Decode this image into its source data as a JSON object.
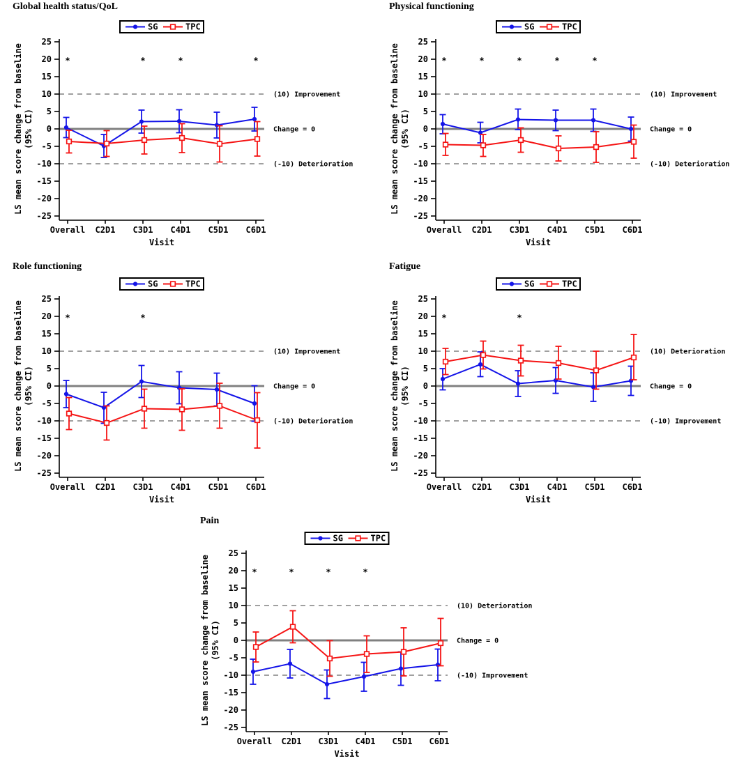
{
  "figure": {
    "background": "#ffffff",
    "axis_color": "#000000",
    "reference_color": "#808080",
    "significance_symbol": "*",
    "xlabel": "Visit",
    "ylabel_line1": "LS mean score change from baseline",
    "ylabel_line2": "(95% CI)",
    "categories": [
      "Overall",
      "C2D1",
      "C3D1",
      "C4D1",
      "C5D1",
      "C6D1"
    ],
    "yticks": [
      25,
      20,
      15,
      10,
      5,
      0,
      -5,
      -10,
      -15,
      -20,
      -25
    ],
    "series_colors": {
      "SG": "#1414e8",
      "TPC": "#f51414"
    }
  },
  "chart_data": [
    {
      "type": "line",
      "title": "Global health status/QoL",
      "xlabel": "Visit",
      "ylabel_line1": "LS mean score change from baseline",
      "ylabel_line2": "(95% CI)",
      "ylim": [
        -25,
        25
      ],
      "yticks": [
        25,
        20,
        15,
        10,
        5,
        0,
        -5,
        -10,
        -15,
        -20,
        -25
      ],
      "categories": [
        "Overall",
        "C2D1",
        "C3D1",
        "C4D1",
        "C5D1",
        "C6D1"
      ],
      "legend_position": "top-center",
      "ref_lines": [
        {
          "y": 10,
          "style": "dashed",
          "label": "(10) Improvement"
        },
        {
          "y": 0,
          "style": "solid",
          "label": "Change = 0"
        },
        {
          "y": -10,
          "style": "dashed",
          "label": "(-10) Deterioration"
        }
      ],
      "significance_marks": {
        "y": 20,
        "at": [
          "Overall",
          "C3D1",
          "C4D1",
          "C6D1"
        ]
      },
      "series": [
        {
          "name": "SG",
          "color": "#1414e8",
          "marker": "filled-circle",
          "values": [
            0.4,
            -4.9,
            2.1,
            2.2,
            1.1,
            2.8
          ],
          "ci_low": [
            -2.5,
            -8.2,
            -1.2,
            -1.1,
            -2.6,
            -0.6
          ],
          "ci_high": [
            3.3,
            -1.6,
            5.4,
            5.5,
            4.8,
            6.2
          ]
        },
        {
          "name": "TPC",
          "color": "#f51414",
          "marker": "open-square",
          "values": [
            -3.6,
            -4.2,
            -3.2,
            -2.6,
            -4.3,
            -2.9
          ],
          "ci_low": [
            -6.9,
            -7.9,
            -7.2,
            -6.8,
            -9.5,
            -7.8
          ],
          "ci_high": [
            -0.4,
            -0.5,
            0.8,
            1.5,
            0.9,
            2.1
          ]
        }
      ]
    },
    {
      "type": "line",
      "title": "Physical functioning",
      "xlabel": "Visit",
      "ylabel_line1": "LS mean score change from baseline",
      "ylabel_line2": "(95% CI)",
      "ylim": [
        -25,
        25
      ],
      "yticks": [
        25,
        20,
        15,
        10,
        5,
        0,
        -5,
        -10,
        -15,
        -20,
        -25
      ],
      "categories": [
        "Overall",
        "C2D1",
        "C3D1",
        "C4D1",
        "C5D1",
        "C6D1"
      ],
      "legend_position": "top-center",
      "ref_lines": [
        {
          "y": 10,
          "style": "dashed",
          "label": "(10) Improvement"
        },
        {
          "y": 0,
          "style": "solid",
          "label": "Change = 0"
        },
        {
          "y": -10,
          "style": "dashed",
          "label": "(-10) Deterioration"
        }
      ],
      "significance_marks": {
        "y": 20,
        "at": [
          "Overall",
          "C2D1",
          "C3D1",
          "C4D1",
          "C5D1"
        ]
      },
      "series": [
        {
          "name": "SG",
          "color": "#1414e8",
          "marker": "filled-circle",
          "values": [
            1.4,
            -1.1,
            2.7,
            2.5,
            2.5,
            0.0
          ],
          "ci_low": [
            -1.4,
            -4.0,
            -0.2,
            -0.5,
            -0.7,
            -3.5
          ],
          "ci_high": [
            4.1,
            1.9,
            5.7,
            5.4,
            5.7,
            3.4
          ]
        },
        {
          "name": "TPC",
          "color": "#f51414",
          "marker": "open-square",
          "values": [
            -4.5,
            -4.7,
            -3.2,
            -5.6,
            -5.2,
            -3.7
          ],
          "ci_low": [
            -7.6,
            -7.9,
            -6.7,
            -9.2,
            -9.6,
            -8.4
          ],
          "ci_high": [
            -1.3,
            -1.6,
            0.3,
            -2.0,
            -0.8,
            1.1
          ]
        }
      ]
    },
    {
      "type": "line",
      "title": "Role functioning",
      "xlabel": "Visit",
      "ylabel_line1": "LS mean score change from baseline",
      "ylabel_line2": "(95% CI)",
      "ylim": [
        -25,
        25
      ],
      "yticks": [
        25,
        20,
        15,
        10,
        5,
        0,
        -5,
        -10,
        -15,
        -20,
        -25
      ],
      "categories": [
        "Overall",
        "C2D1",
        "C3D1",
        "C4D1",
        "C5D1",
        "C6D1"
      ],
      "legend_position": "top-center",
      "ref_lines": [
        {
          "y": 10,
          "style": "dashed",
          "label": "(10) Improvement"
        },
        {
          "y": 0,
          "style": "solid",
          "label": "Change = 0"
        },
        {
          "y": -10,
          "style": "dashed",
          "label": "(-10) Deterioration"
        }
      ],
      "significance_marks": {
        "y": 20,
        "at": [
          "Overall",
          "C3D1"
        ]
      },
      "series": [
        {
          "name": "SG",
          "color": "#1414e8",
          "marker": "filled-circle",
          "values": [
            -2.3,
            -6.2,
            1.3,
            -0.5,
            -1.0,
            -5.0
          ],
          "ci_low": [
            -6.2,
            -10.7,
            -3.3,
            -5.1,
            -5.7,
            -10.1
          ],
          "ci_high": [
            1.6,
            -1.8,
            5.9,
            4.1,
            3.7,
            0.1
          ]
        },
        {
          "name": "TPC",
          "color": "#f51414",
          "marker": "open-square",
          "values": [
            -7.9,
            -10.6,
            -6.5,
            -6.7,
            -5.7,
            -9.8
          ],
          "ci_low": [
            -12.5,
            -15.5,
            -12.1,
            -12.7,
            -12.1,
            -17.8
          ],
          "ci_high": [
            -3.3,
            -5.7,
            -0.9,
            -0.8,
            0.8,
            -1.9
          ]
        }
      ]
    },
    {
      "type": "line",
      "title": "Fatigue",
      "xlabel": "Visit",
      "ylabel_line1": "LS mean score change from baseline",
      "ylabel_line2": "(95% CI)",
      "ylim": [
        -25,
        25
      ],
      "yticks": [
        25,
        20,
        15,
        10,
        5,
        0,
        -5,
        -10,
        -15,
        -20,
        -25
      ],
      "categories": [
        "Overall",
        "C2D1",
        "C3D1",
        "C4D1",
        "C5D1",
        "C6D1"
      ],
      "legend_position": "top-center",
      "ref_lines": [
        {
          "y": 10,
          "style": "dashed",
          "label": "(10) Deterioration"
        },
        {
          "y": 0,
          "style": "solid",
          "label": "Change = 0"
        },
        {
          "y": -10,
          "style": "dashed",
          "label": "(-10) Improvement"
        }
      ],
      "significance_marks": {
        "y": 20,
        "at": [
          "Overall",
          "C3D1"
        ]
      },
      "series": [
        {
          "name": "SG",
          "color": "#1414e8",
          "marker": "filled-circle",
          "values": [
            2.0,
            6.2,
            0.7,
            1.6,
            -0.3,
            1.5
          ],
          "ci_low": [
            -1.1,
            2.7,
            -3.0,
            -2.1,
            -4.4,
            -2.7
          ],
          "ci_high": [
            5.0,
            9.8,
            4.4,
            5.3,
            3.8,
            5.7
          ]
        },
        {
          "name": "TPC",
          "color": "#f51414",
          "marker": "open-square",
          "values": [
            7.0,
            8.9,
            7.3,
            6.6,
            4.5,
            8.2
          ],
          "ci_low": [
            3.3,
            4.9,
            2.9,
            2.0,
            -0.9,
            1.8
          ],
          "ci_high": [
            10.8,
            12.9,
            11.7,
            11.4,
            10.0,
            14.8
          ]
        }
      ]
    },
    {
      "type": "line",
      "title": "Pain",
      "xlabel": "Visit",
      "ylabel_line1": "LS mean score change from baseline",
      "ylabel_line2": "(95% CI)",
      "ylim": [
        -25,
        25
      ],
      "yticks": [
        25,
        20,
        15,
        10,
        5,
        0,
        -5,
        -10,
        -15,
        -20,
        -25
      ],
      "categories": [
        "Overall",
        "C2D1",
        "C3D1",
        "C4D1",
        "C5D1",
        "C6D1"
      ],
      "legend_position": "top-center",
      "ref_lines": [
        {
          "y": 10,
          "style": "dashed",
          "label": "(10) Deterioration"
        },
        {
          "y": 0,
          "style": "solid",
          "label": "Change = 0"
        },
        {
          "y": -10,
          "style": "dashed",
          "label": "(-10) Improvement"
        }
      ],
      "significance_marks": {
        "y": 20,
        "at": [
          "Overall",
          "C2D1",
          "C3D1",
          "C4D1"
        ]
      },
      "series": [
        {
          "name": "SG",
          "color": "#1414e8",
          "marker": "filled-circle",
          "values": [
            -9.0,
            -6.7,
            -12.6,
            -10.4,
            -8.1,
            -7.0
          ],
          "ci_low": [
            -12.6,
            -10.8,
            -16.7,
            -14.6,
            -12.9,
            -11.6
          ],
          "ci_high": [
            -5.4,
            -2.6,
            -8.5,
            -6.3,
            -3.3,
            -2.5
          ]
        },
        {
          "name": "TPC",
          "color": "#f51414",
          "marker": "open-square",
          "values": [
            -1.9,
            3.9,
            -5.2,
            -3.9,
            -3.3,
            -0.8
          ],
          "ci_low": [
            -6.2,
            -0.7,
            -10.3,
            -9.2,
            -10.2,
            -7.3
          ],
          "ci_high": [
            2.4,
            8.5,
            -0.1,
            1.3,
            3.6,
            6.3
          ]
        }
      ]
    }
  ]
}
